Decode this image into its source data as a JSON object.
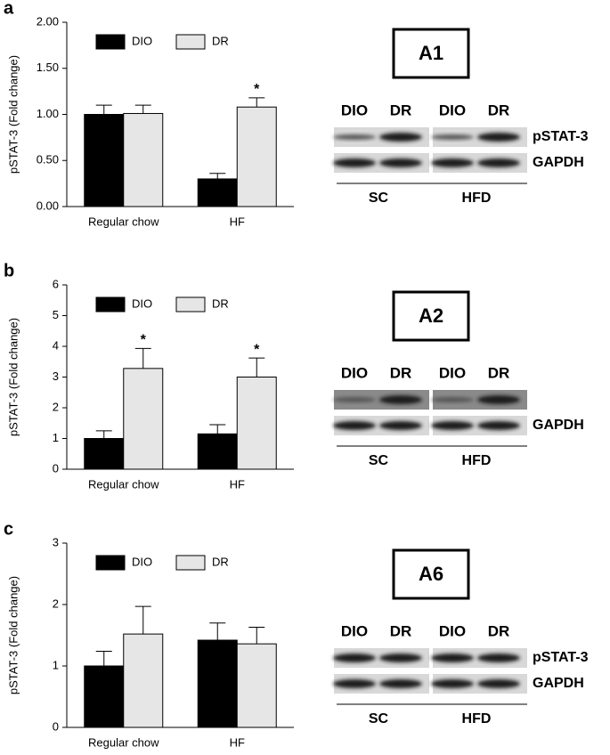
{
  "chart_data": [
    {
      "type": "bar",
      "panel": "a",
      "y_label": "pSTAT-3 (Fold change)",
      "categories": [
        "Regular chow",
        "HF"
      ],
      "series": [
        {
          "name": "DIO",
          "color": "#000000",
          "values": [
            1.0,
            0.3
          ],
          "errors": [
            0.1,
            0.06
          ],
          "significance": [
            null,
            null
          ]
        },
        {
          "name": "DR",
          "color": "#e6e6e6",
          "values": [
            1.01,
            1.08
          ],
          "errors": [
            0.09,
            0.1
          ],
          "significance": [
            null,
            "*"
          ]
        }
      ],
      "ylim": [
        0,
        2
      ],
      "yticks": [
        {
          "value": 0,
          "label": "0.00"
        },
        {
          "value": 0.5,
          "label": "0.50"
        },
        {
          "value": 1,
          "label": "1.00"
        },
        {
          "value": 1.5,
          "label": "1.50"
        },
        {
          "value": 2,
          "label": "2.00"
        }
      ]
    },
    {
      "type": "bar",
      "panel": "b",
      "y_label": "pSTAT-3 (Fold change)",
      "categories": [
        "Regular chow",
        "HF"
      ],
      "series": [
        {
          "name": "DIO",
          "color": "#000000",
          "values": [
            1.0,
            1.15
          ],
          "errors": [
            0.25,
            0.3
          ],
          "significance": [
            null,
            null
          ]
        },
        {
          "name": "DR",
          "color": "#e6e6e6",
          "values": [
            3.28,
            3.0
          ],
          "errors": [
            0.65,
            0.62
          ],
          "significance": [
            "*",
            "*"
          ]
        }
      ],
      "ylim": [
        0,
        6
      ],
      "yticks": [
        0,
        1,
        2,
        3,
        4,
        5,
        6
      ]
    },
    {
      "type": "bar",
      "panel": "c",
      "y_label": "pSTAT-3 (Fold change)",
      "categories": [
        "Regular chow",
        "HF"
      ],
      "series": [
        {
          "name": "DIO",
          "color": "#000000",
          "values": [
            1.0,
            1.42
          ],
          "errors": [
            0.24,
            0.28
          ],
          "significance": [
            null,
            null
          ]
        },
        {
          "name": "DR",
          "color": "#e6e6e6",
          "values": [
            1.52,
            1.36
          ],
          "errors": [
            0.45,
            0.27
          ],
          "significance": [
            null,
            null
          ]
        }
      ],
      "ylim": [
        0,
        3
      ],
      "yticks": [
        0,
        1,
        2,
        3
      ]
    }
  ],
  "blots": [
    {
      "title": "A1",
      "lanes": [
        "DIO",
        "DR",
        "DIO",
        "DR"
      ],
      "rows": [
        "pSTAT-3",
        "GAPDH"
      ],
      "groups": [
        "SC",
        "HFD"
      ]
    },
    {
      "title": "A2",
      "lanes": [
        "DIO",
        "DR",
        "DIO",
        "DR"
      ],
      "rows": [
        null,
        "GAPDH"
      ],
      "groups": [
        "SC",
        "HFD"
      ]
    },
    {
      "title": "A6",
      "lanes": [
        "DIO",
        "DR",
        "DIO",
        "DR"
      ],
      "rows": [
        "pSTAT-3",
        "GAPDH"
      ],
      "groups": [
        "SC",
        "HFD"
      ]
    }
  ]
}
